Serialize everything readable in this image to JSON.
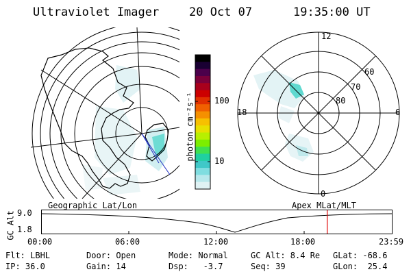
{
  "header": {
    "instrument": "Ultraviolet Imager",
    "date": "20 Oct 07",
    "time": "19:35:00 UT"
  },
  "left_map": {
    "caption": "Geographic Lat/Lon"
  },
  "right_map": {
    "caption": "Apex MLat/MLT",
    "mlt_labels": [
      "12",
      "18",
      "6",
      "0"
    ],
    "mlat_labels": [
      "60",
      "70",
      "80"
    ]
  },
  "colorbar": {
    "unit_label": "photon cm⁻²s⁻¹",
    "tick_labels": [
      "100",
      "10"
    ],
    "colors": [
      "#000000",
      "#1a0033",
      "#4b004b",
      "#7a003a",
      "#a8001c",
      "#cc0000",
      "#e03000",
      "#f06000",
      "#f59000",
      "#f7c000",
      "#e8e000",
      "#b8ef00",
      "#7cee00",
      "#3fe050",
      "#20d0a0",
      "#40c8c8",
      "#80dde0",
      "#b8e8ec",
      "#dff2f4"
    ]
  },
  "altitude_plot": {
    "ylabel": "GC Alt",
    "y_top": "9.0",
    "y_bottom": "1.8",
    "x_ticks": [
      "00:00",
      "06:00",
      "12:00",
      "18:00",
      "23:59"
    ],
    "current_marker_hour": 19.58
  },
  "status": {
    "row1": [
      "Flt: LBHL",
      "Door: Open",
      "Mode: Normal",
      "GC Alt: 8.4 Re",
      "GLat: -68.6"
    ],
    "row2": [
      "IP: 36.0",
      "Gain: 14",
      "Dsp:   -3.7",
      "Seq: 39",
      "GLon:  25.4"
    ]
  }
}
